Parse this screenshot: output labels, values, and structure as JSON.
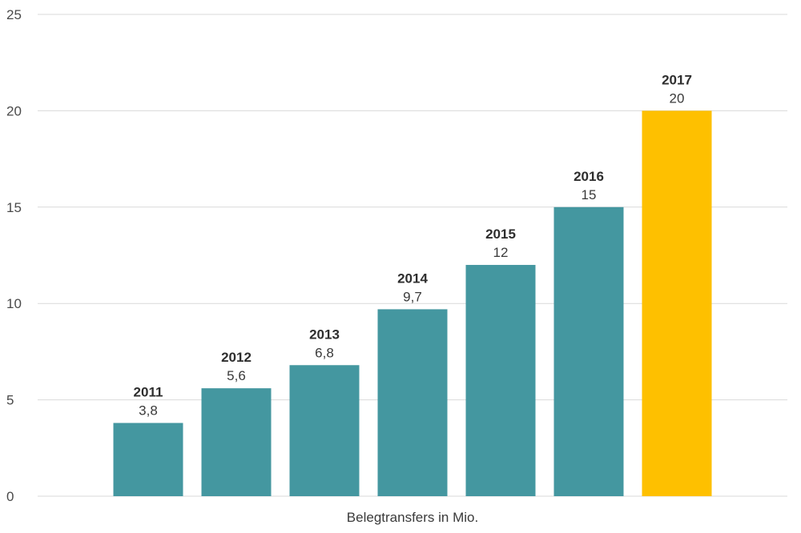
{
  "chart_data": {
    "type": "bar",
    "categories": [
      "2011",
      "2012",
      "2013",
      "2014",
      "2015",
      "2016",
      "2017"
    ],
    "values": [
      3.8,
      5.6,
      6.8,
      9.7,
      12,
      15,
      20
    ],
    "value_labels": [
      "3,8",
      "5,6",
      "6,8",
      "9,7",
      "12",
      "15",
      "20"
    ],
    "xlabel": "Belegtransfers in Mio.",
    "ylabel": "",
    "ylim": [
      0,
      25
    ],
    "yticks": [
      0,
      5,
      10,
      15,
      20,
      25
    ],
    "grid": true,
    "colors": {
      "default_bar": "#4497a0",
      "highlight_bar": "#fec000",
      "highlight_category": "2017"
    }
  }
}
